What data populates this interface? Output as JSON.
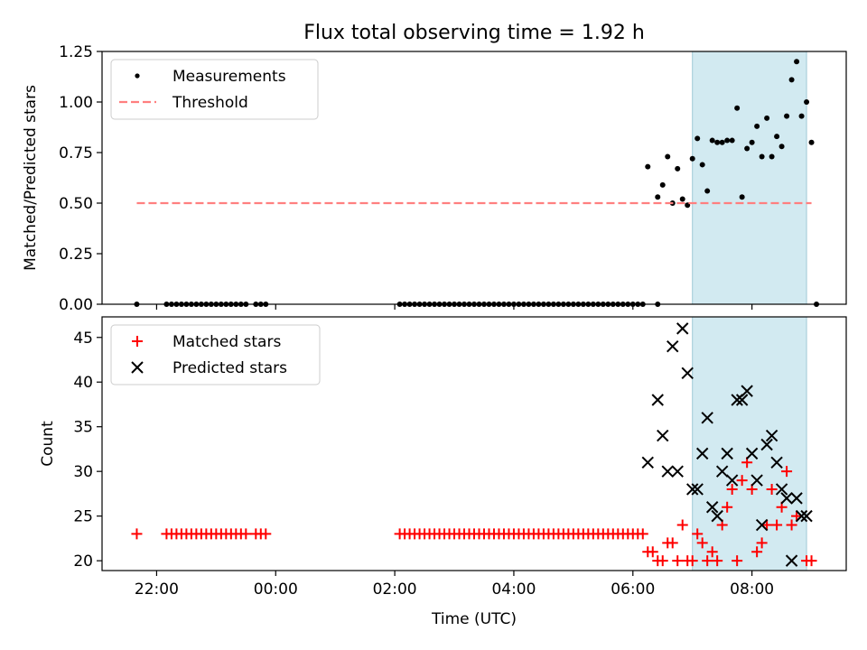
{
  "figure": {
    "title": "Flux total observing time = 1.92 h",
    "xlabel": "Time (UTC)"
  },
  "chart_data": [
    {
      "type": "scatter",
      "panel": "top",
      "ylabel": "Matched/Predicted stars",
      "xlim": [
        "21:05",
        "09:35"
      ],
      "ylim": [
        0,
        1.25
      ],
      "y_ticks": [
        0.0,
        0.25,
        0.5,
        0.75,
        1.0,
        1.25
      ],
      "y_tick_labels": [
        "0.00",
        "0.25",
        "0.50",
        "0.75",
        "1.00",
        "1.25"
      ],
      "x_ticks": [
        "22:00",
        "00:00",
        "02:00",
        "04:00",
        "06:00",
        "08:00"
      ],
      "shaded_interval": [
        "07:00",
        "08:55"
      ],
      "shade_color": "#add8e6",
      "legend": {
        "placement": "upper left",
        "entries": [
          "Measurements",
          "Threshold"
        ]
      },
      "series": [
        {
          "name": "Measurements",
          "marker": "dot",
          "color": "#000000",
          "points": [
            [
              "21:40",
              0
            ],
            [
              "22:10",
              0
            ],
            [
              "22:15",
              0
            ],
            [
              "22:20",
              0
            ],
            [
              "22:25",
              0
            ],
            [
              "22:30",
              0
            ],
            [
              "22:35",
              0
            ],
            [
              "22:40",
              0
            ],
            [
              "22:45",
              0
            ],
            [
              "22:50",
              0
            ],
            [
              "22:55",
              0
            ],
            [
              "23:00",
              0
            ],
            [
              "23:05",
              0
            ],
            [
              "23:10",
              0
            ],
            [
              "23:15",
              0
            ],
            [
              "23:20",
              0
            ],
            [
              "23:25",
              0
            ],
            [
              "23:30",
              0
            ],
            [
              "23:40",
              0
            ],
            [
              "23:45",
              0
            ],
            [
              "23:50",
              0
            ],
            [
              "02:05",
              0
            ],
            [
              "02:10",
              0
            ],
            [
              "02:15",
              0
            ],
            [
              "02:20",
              0
            ],
            [
              "02:25",
              0
            ],
            [
              "02:30",
              0
            ],
            [
              "02:35",
              0
            ],
            [
              "02:40",
              0
            ],
            [
              "02:45",
              0
            ],
            [
              "02:50",
              0
            ],
            [
              "02:55",
              0
            ],
            [
              "03:00",
              0
            ],
            [
              "03:05",
              0
            ],
            [
              "03:10",
              0
            ],
            [
              "03:15",
              0
            ],
            [
              "03:20",
              0
            ],
            [
              "03:25",
              0
            ],
            [
              "03:30",
              0
            ],
            [
              "03:35",
              0
            ],
            [
              "03:40",
              0
            ],
            [
              "03:45",
              0
            ],
            [
              "03:50",
              0
            ],
            [
              "03:55",
              0
            ],
            [
              "04:00",
              0
            ],
            [
              "04:05",
              0
            ],
            [
              "04:10",
              0
            ],
            [
              "04:15",
              0
            ],
            [
              "04:20",
              0
            ],
            [
              "04:25",
              0
            ],
            [
              "04:30",
              0
            ],
            [
              "04:35",
              0
            ],
            [
              "04:40",
              0
            ],
            [
              "04:45",
              0
            ],
            [
              "04:50",
              0
            ],
            [
              "04:55",
              0
            ],
            [
              "05:00",
              0
            ],
            [
              "05:05",
              0
            ],
            [
              "05:10",
              0
            ],
            [
              "05:15",
              0
            ],
            [
              "05:20",
              0
            ],
            [
              "05:25",
              0
            ],
            [
              "05:30",
              0
            ],
            [
              "05:35",
              0
            ],
            [
              "05:40",
              0
            ],
            [
              "05:45",
              0
            ],
            [
              "05:50",
              0
            ],
            [
              "05:55",
              0
            ],
            [
              "06:00",
              0
            ],
            [
              "06:05",
              0
            ],
            [
              "06:10",
              0
            ],
            [
              "06:25",
              0
            ],
            [
              "06:15",
              0.68
            ],
            [
              "06:25",
              0.53
            ],
            [
              "06:30",
              0.59
            ],
            [
              "06:35",
              0.73
            ],
            [
              "06:40",
              0.5
            ],
            [
              "06:45",
              0.67
            ],
            [
              "06:50",
              0.52
            ],
            [
              "06:55",
              0.49
            ],
            [
              "07:00",
              0.72
            ],
            [
              "07:05",
              0.82
            ],
            [
              "07:10",
              0.69
            ],
            [
              "07:15",
              0.56
            ],
            [
              "07:20",
              0.81
            ],
            [
              "07:25",
              0.8
            ],
            [
              "07:30",
              0.8
            ],
            [
              "07:35",
              0.81
            ],
            [
              "07:40",
              0.81
            ],
            [
              "07:45",
              0.97
            ],
            [
              "07:50",
              0.53
            ],
            [
              "07:55",
              0.77
            ],
            [
              "08:00",
              0.8
            ],
            [
              "08:05",
              0.88
            ],
            [
              "08:10",
              0.73
            ],
            [
              "08:15",
              0.92
            ],
            [
              "08:20",
              0.73
            ],
            [
              "08:25",
              0.83
            ],
            [
              "08:30",
              0.78
            ],
            [
              "08:35",
              0.93
            ],
            [
              "08:40",
              1.11
            ],
            [
              "08:45",
              1.2
            ],
            [
              "08:50",
              0.93
            ],
            [
              "08:55",
              1.0
            ],
            [
              "09:00",
              0.8
            ],
            [
              "09:05",
              0
            ]
          ]
        },
        {
          "name": "Threshold",
          "style": "dashed-line",
          "color": "#ff7f7f",
          "points": [
            [
              "21:40",
              0.5
            ],
            [
              "09:00",
              0.5
            ]
          ]
        }
      ]
    },
    {
      "type": "scatter",
      "panel": "bottom",
      "ylabel": "Count",
      "xlim": [
        "21:05",
        "09:35"
      ],
      "ylim": [
        18.9,
        47.3
      ],
      "y_ticks": [
        20,
        25,
        30,
        35,
        40,
        45
      ],
      "y_tick_labels": [
        "20",
        "25",
        "30",
        "35",
        "40",
        "45"
      ],
      "x_ticks": [
        "22:00",
        "00:00",
        "02:00",
        "04:00",
        "06:00",
        "08:00"
      ],
      "x_tick_labels": [
        "22:00",
        "00:00",
        "02:00",
        "04:00",
        "06:00",
        "08:00"
      ],
      "shaded_interval": [
        "07:00",
        "08:55"
      ],
      "shade_color": "#add8e6",
      "legend": {
        "placement": "upper left",
        "entries": [
          "Matched stars",
          "Predicted stars"
        ]
      },
      "series": [
        {
          "name": "Matched stars",
          "marker": "plus",
          "color": "#ff0000",
          "points": [
            [
              "21:40",
              23
            ],
            [
              "22:10",
              23
            ],
            [
              "22:15",
              23
            ],
            [
              "22:20",
              23
            ],
            [
              "22:25",
              23
            ],
            [
              "22:30",
              23
            ],
            [
              "22:35",
              23
            ],
            [
              "22:40",
              23
            ],
            [
              "22:45",
              23
            ],
            [
              "22:50",
              23
            ],
            [
              "22:55",
              23
            ],
            [
              "23:00",
              23
            ],
            [
              "23:05",
              23
            ],
            [
              "23:10",
              23
            ],
            [
              "23:15",
              23
            ],
            [
              "23:20",
              23
            ],
            [
              "23:25",
              23
            ],
            [
              "23:30",
              23
            ],
            [
              "23:40",
              23
            ],
            [
              "23:45",
              23
            ],
            [
              "23:50",
              23
            ],
            [
              "02:05",
              23
            ],
            [
              "02:10",
              23
            ],
            [
              "02:15",
              23
            ],
            [
              "02:20",
              23
            ],
            [
              "02:25",
              23
            ],
            [
              "02:30",
              23
            ],
            [
              "02:35",
              23
            ],
            [
              "02:40",
              23
            ],
            [
              "02:45",
              23
            ],
            [
              "02:50",
              23
            ],
            [
              "02:55",
              23
            ],
            [
              "03:00",
              23
            ],
            [
              "03:05",
              23
            ],
            [
              "03:10",
              23
            ],
            [
              "03:15",
              23
            ],
            [
              "03:20",
              23
            ],
            [
              "03:25",
              23
            ],
            [
              "03:30",
              23
            ],
            [
              "03:35",
              23
            ],
            [
              "03:40",
              23
            ],
            [
              "03:45",
              23
            ],
            [
              "03:50",
              23
            ],
            [
              "03:55",
              23
            ],
            [
              "04:00",
              23
            ],
            [
              "04:05",
              23
            ],
            [
              "04:10",
              23
            ],
            [
              "04:15",
              23
            ],
            [
              "04:20",
              23
            ],
            [
              "04:25",
              23
            ],
            [
              "04:30",
              23
            ],
            [
              "04:35",
              23
            ],
            [
              "04:40",
              23
            ],
            [
              "04:45",
              23
            ],
            [
              "04:50",
              23
            ],
            [
              "04:55",
              23
            ],
            [
              "05:00",
              23
            ],
            [
              "05:05",
              23
            ],
            [
              "05:10",
              23
            ],
            [
              "05:15",
              23
            ],
            [
              "05:20",
              23
            ],
            [
              "05:25",
              23
            ],
            [
              "05:30",
              23
            ],
            [
              "05:35",
              23
            ],
            [
              "05:40",
              23
            ],
            [
              "05:45",
              23
            ],
            [
              "05:50",
              23
            ],
            [
              "05:55",
              23
            ],
            [
              "06:00",
              23
            ],
            [
              "06:05",
              23
            ],
            [
              "06:10",
              23
            ],
            [
              "06:15",
              21
            ],
            [
              "06:20",
              21
            ],
            [
              "06:25",
              20
            ],
            [
              "06:30",
              20
            ],
            [
              "06:35",
              22
            ],
            [
              "06:40",
              22
            ],
            [
              "06:45",
              20
            ],
            [
              "06:50",
              24
            ],
            [
              "06:55",
              20
            ],
            [
              "07:00",
              20
            ],
            [
              "07:05",
              23
            ],
            [
              "07:10",
              22
            ],
            [
              "07:15",
              20
            ],
            [
              "07:20",
              21
            ],
            [
              "07:25",
              20
            ],
            [
              "07:30",
              24
            ],
            [
              "07:35",
              26
            ],
            [
              "07:40",
              28
            ],
            [
              "07:45",
              20
            ],
            [
              "07:50",
              29
            ],
            [
              "07:55",
              31
            ],
            [
              "08:00",
              28
            ],
            [
              "08:05",
              21
            ],
            [
              "08:10",
              22
            ],
            [
              "08:15",
              24
            ],
            [
              "08:20",
              28
            ],
            [
              "08:25",
              24
            ],
            [
              "08:30",
              26
            ],
            [
              "08:35",
              30
            ],
            [
              "08:40",
              24
            ],
            [
              "08:45",
              25
            ],
            [
              "08:55",
              20
            ],
            [
              "09:00",
              20
            ]
          ]
        },
        {
          "name": "Predicted stars",
          "marker": "x",
          "color": "#000000",
          "points": [
            [
              "06:15",
              31
            ],
            [
              "06:25",
              38
            ],
            [
              "06:30",
              34
            ],
            [
              "06:35",
              30
            ],
            [
              "06:40",
              44
            ],
            [
              "06:45",
              30
            ],
            [
              "06:50",
              46
            ],
            [
              "06:55",
              41
            ],
            [
              "07:00",
              28
            ],
            [
              "07:05",
              28
            ],
            [
              "07:10",
              32
            ],
            [
              "07:15",
              36
            ],
            [
              "07:20",
              26
            ],
            [
              "07:25",
              25
            ],
            [
              "07:30",
              30
            ],
            [
              "07:35",
              32
            ],
            [
              "07:40",
              29
            ],
            [
              "07:45",
              38
            ],
            [
              "07:50",
              38
            ],
            [
              "07:55",
              39
            ],
            [
              "08:00",
              32
            ],
            [
              "08:05",
              29
            ],
            [
              "08:10",
              24
            ],
            [
              "08:15",
              33
            ],
            [
              "08:20",
              34
            ],
            [
              "08:25",
              31
            ],
            [
              "08:30",
              28
            ],
            [
              "08:35",
              27
            ],
            [
              "08:40",
              20
            ],
            [
              "08:45",
              27
            ],
            [
              "08:50",
              25
            ],
            [
              "08:55",
              25
            ]
          ]
        }
      ]
    }
  ]
}
